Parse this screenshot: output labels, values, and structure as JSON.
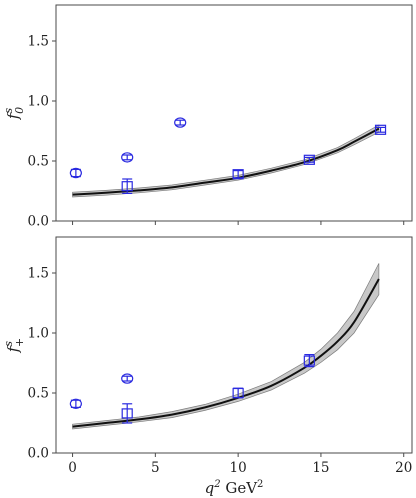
{
  "chart_data": [
    {
      "type": "scatter",
      "ylabel": "f_0^s",
      "ylim": [
        0,
        1.8
      ],
      "xlim": [
        -1,
        20.5
      ],
      "yticks": [
        0.0,
        0.5,
        1.0,
        1.5
      ],
      "ytick_labels": [
        "0.0",
        "0.5",
        "1.0",
        "1.5"
      ],
      "xticks": [
        0,
        5,
        10,
        15,
        20
      ],
      "show_xtick_labels": false,
      "grid": false,
      "marker_color": "#2a2ae0",
      "series": [
        {
          "marker": "circle",
          "points": [
            {
              "x": 0.2,
              "y": 0.4,
              "err": 0.03
            },
            {
              "x": 3.3,
              "y": 0.53,
              "err": 0.02
            },
            {
              "x": 6.5,
              "y": 0.82,
              "err": 0.02
            }
          ]
        },
        {
          "marker": "square",
          "points": [
            {
              "x": 3.3,
              "y": 0.29,
              "err": 0.06
            },
            {
              "x": 10.0,
              "y": 0.39,
              "err": 0.03
            },
            {
              "x": 14.3,
              "y": 0.51,
              "err": 0.02
            },
            {
              "x": 18.6,
              "y": 0.76,
              "err": 0.02
            }
          ]
        }
      ],
      "fit": {
        "x": [
          0,
          2,
          4,
          6,
          8,
          10,
          12,
          14,
          16,
          17,
          18.5
        ],
        "y": [
          0.22,
          0.235,
          0.255,
          0.28,
          0.32,
          0.36,
          0.42,
          0.49,
          0.59,
          0.66,
          0.77
        ],
        "band_half_width": [
          0.02,
          0.02,
          0.02,
          0.02,
          0.02,
          0.02,
          0.02,
          0.02,
          0.022,
          0.025,
          0.03
        ],
        "line_color": "#111111",
        "band_color": "#9a9a9a"
      }
    },
    {
      "type": "scatter",
      "ylabel": "f_+^s",
      "xlabel": "q^2 GeV^2",
      "ylim": [
        0,
        1.8
      ],
      "xlim": [
        -1,
        20.5
      ],
      "yticks": [
        0.0,
        0.5,
        1.0,
        1.5
      ],
      "ytick_labels": [
        "0.0",
        "0.5",
        "1.0",
        "1.5"
      ],
      "xticks": [
        0,
        5,
        10,
        15,
        20
      ],
      "xtick_labels": [
        "0",
        "5",
        "10",
        "15",
        "20"
      ],
      "show_xtick_labels": true,
      "grid": false,
      "marker_color": "#2a2ae0",
      "series": [
        {
          "marker": "circle",
          "points": [
            {
              "x": 0.2,
              "y": 0.41,
              "err": 0.03
            },
            {
              "x": 3.3,
              "y": 0.62,
              "err": 0.02
            }
          ]
        },
        {
          "marker": "square",
          "points": [
            {
              "x": 3.3,
              "y": 0.33,
              "err": 0.08
            },
            {
              "x": 10.0,
              "y": 0.5,
              "err": 0.04
            },
            {
              "x": 14.3,
              "y": 0.77,
              "err": 0.05
            }
          ]
        }
      ],
      "fit": {
        "x": [
          0,
          2,
          4,
          6,
          8,
          10,
          12,
          14,
          15,
          16,
          17,
          18.5
        ],
        "y": [
          0.22,
          0.25,
          0.28,
          0.32,
          0.38,
          0.46,
          0.56,
          0.71,
          0.81,
          0.93,
          1.09,
          1.45
        ],
        "band_half_width": [
          0.02,
          0.02,
          0.02,
          0.025,
          0.025,
          0.03,
          0.035,
          0.045,
          0.055,
          0.07,
          0.09,
          0.13
        ],
        "line_color": "#111111",
        "band_color": "#9a9a9a"
      }
    }
  ]
}
